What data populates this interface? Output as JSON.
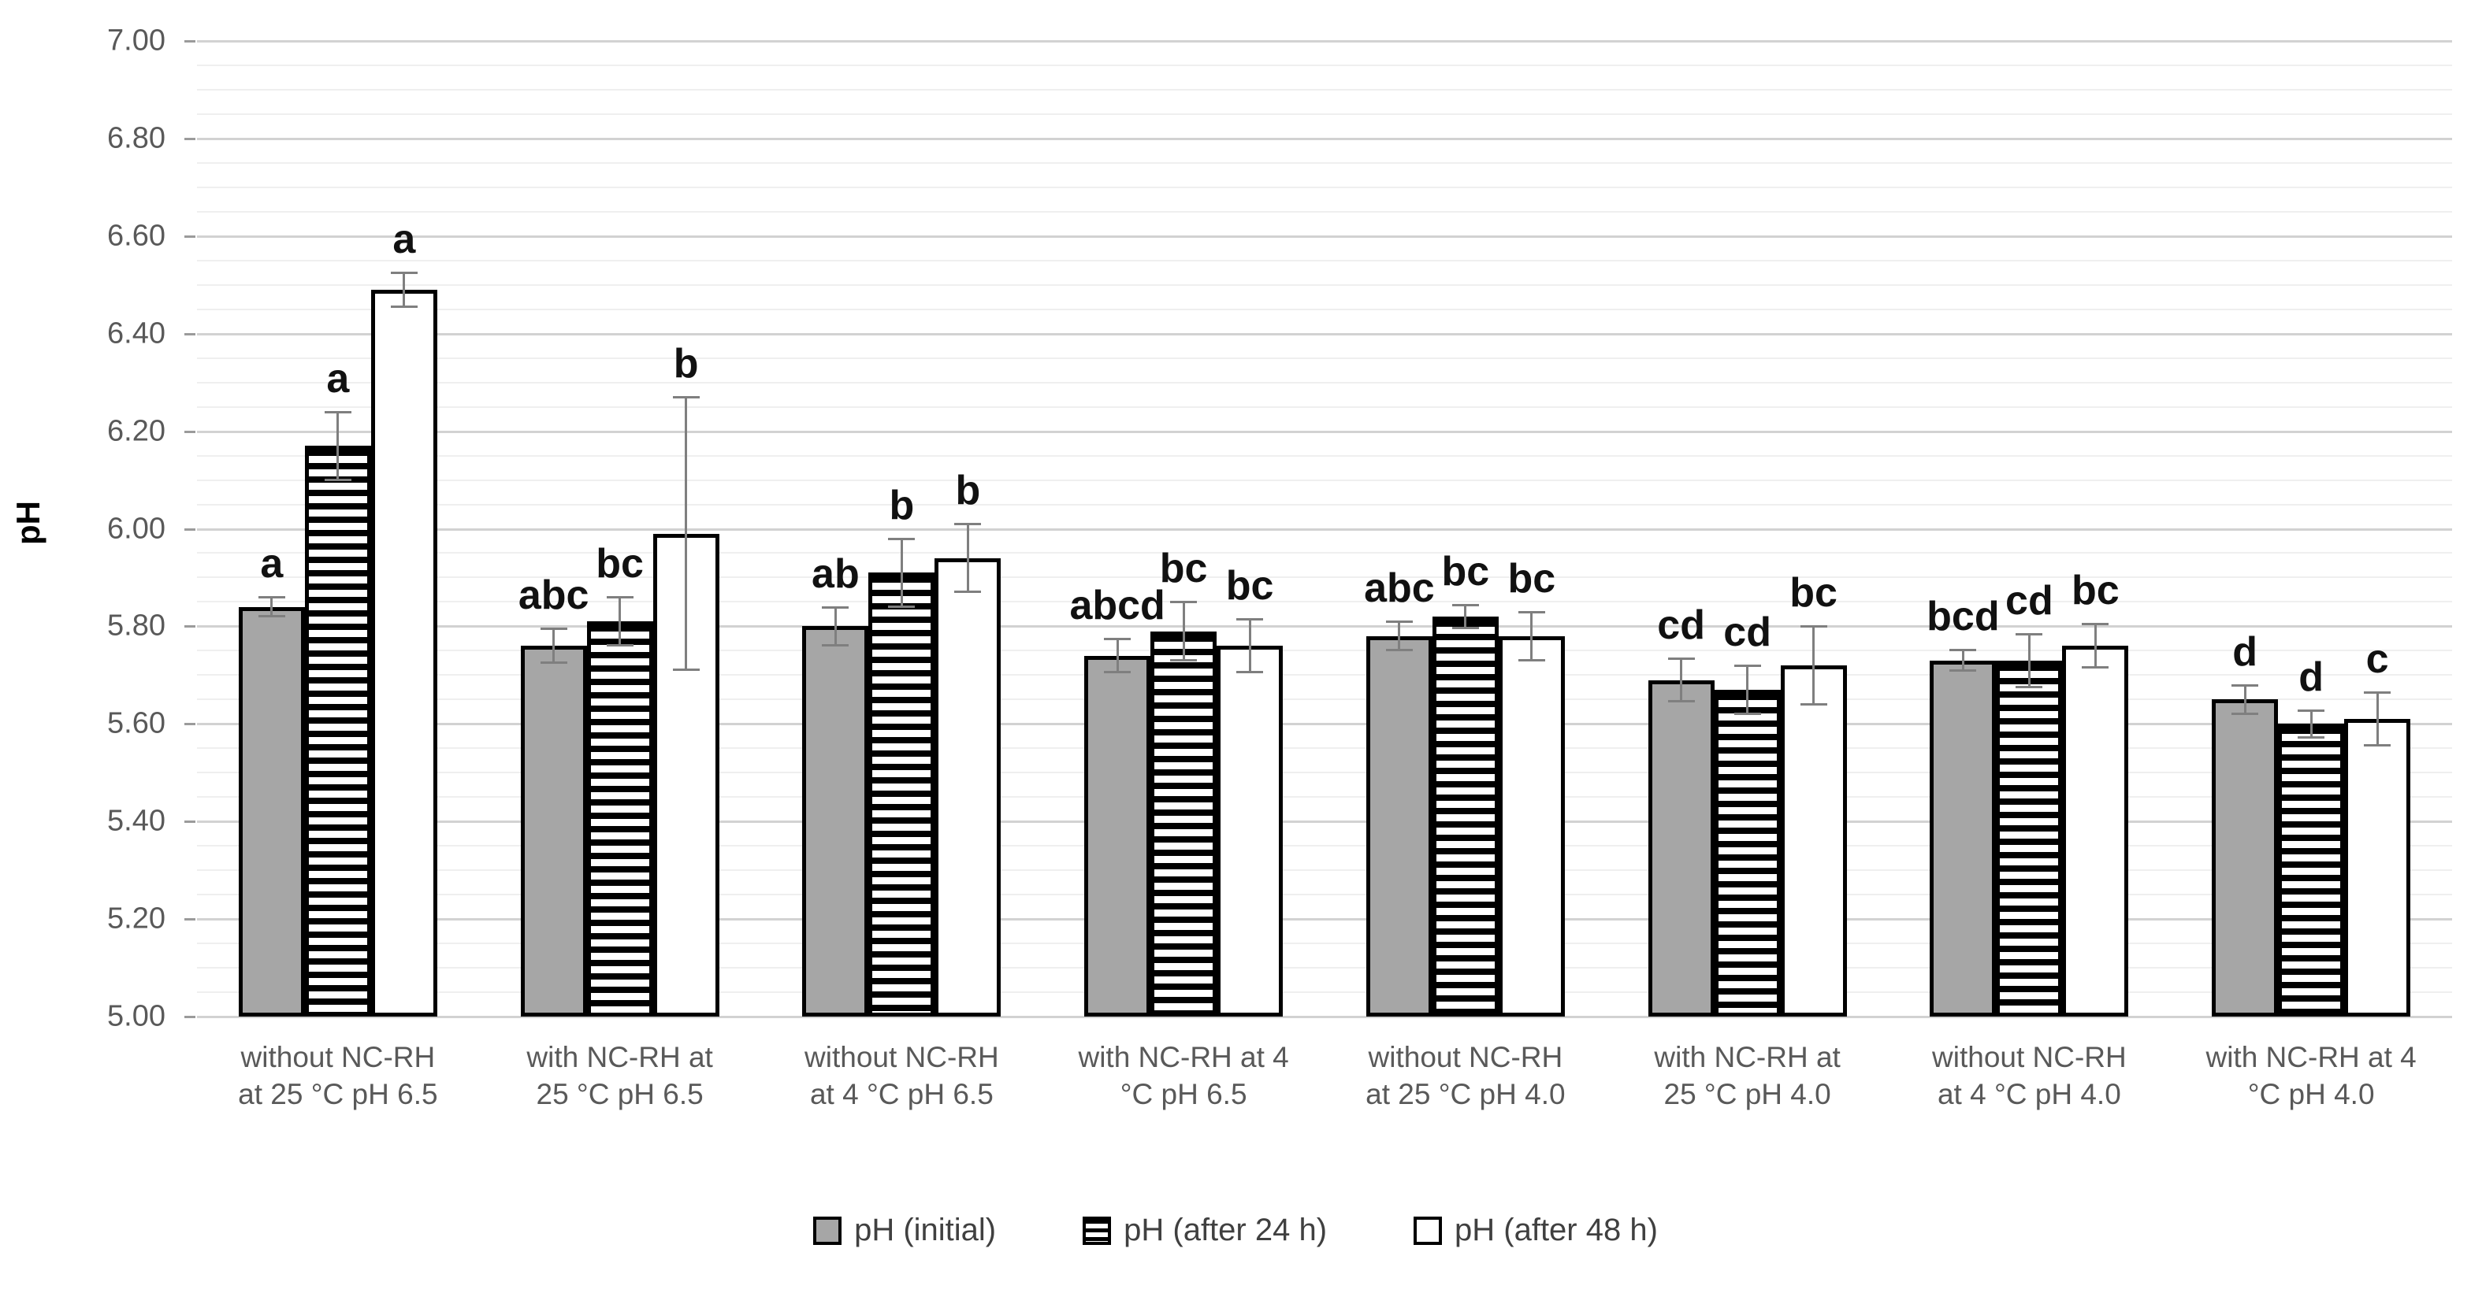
{
  "chart_data": {
    "type": "bar",
    "title": "",
    "xlabel": "",
    "ylabel": "pH",
    "ylim": [
      5.0,
      7.0
    ],
    "ytick_step": 0.2,
    "minor_gridline_step": 0.05,
    "grid": "on",
    "legend_position": "bottom",
    "yticks": [
      "7.00",
      "6.80",
      "6.60",
      "6.40",
      "6.20",
      "6.00",
      "5.80",
      "5.60",
      "5.40",
      "5.20",
      "5.00"
    ],
    "categories": [
      "without NC-RH at 25 °C pH 6.5",
      "with NC-RH at 25 °C pH 6.5",
      "without NC-RH at 4 °C pH 6.5",
      "with NC-RH at 4 °C pH 6.5",
      "without NC-RH at 25 °C pH 4.0",
      "with NC-RH at 25 °C pH 4.0",
      "without NC-RH at 4 °C pH 4.0",
      "with NC-RH at 4 °C pH 4.0"
    ],
    "category_label_lines": [
      [
        "without NC-RH",
        "at 25 °C pH 6.5"
      ],
      [
        "with NC-RH at",
        "25 °C pH 6.5"
      ],
      [
        "without NC-RH",
        "at 4 °C pH 6.5"
      ],
      [
        "with NC-RH at 4",
        "°C pH 6.5"
      ],
      [
        "without NC-RH",
        "at 25 °C pH 4.0"
      ],
      [
        "with NC-RH at",
        "25 °C pH 4.0"
      ],
      [
        "without NC-RH",
        "at 4 °C pH 4.0"
      ],
      [
        "with NC-RH at 4",
        "°C pH 4.0"
      ]
    ],
    "series": [
      {
        "name": "pH (initial)",
        "pattern": "solid-gray",
        "fill_color": "#a6a6a6",
        "values": [
          5.84,
          5.76,
          5.8,
          5.74,
          5.78,
          5.69,
          5.73,
          5.65
        ],
        "errors": [
          0.02,
          0.035,
          0.04,
          0.035,
          0.03,
          0.045,
          0.022,
          0.03
        ],
        "letters": [
          "a",
          "abc",
          "ab",
          "abcd",
          "abc",
          "cd",
          "bcd",
          "d"
        ]
      },
      {
        "name": "pH (after 24 h)",
        "pattern": "horizontal-stripes",
        "fill_color": "#ffffff",
        "values": [
          6.17,
          5.81,
          5.91,
          5.79,
          5.82,
          5.67,
          5.73,
          5.6
        ],
        "errors": [
          0.07,
          0.05,
          0.07,
          0.06,
          0.025,
          0.05,
          0.055,
          0.028
        ],
        "letters": [
          "a",
          "bc",
          "b",
          "bc",
          "bc",
          "cd",
          "cd",
          "d"
        ]
      },
      {
        "name": "pH (after 48 h)",
        "pattern": "solid-white",
        "fill_color": "#ffffff",
        "values": [
          6.49,
          5.99,
          5.94,
          5.76,
          5.78,
          5.72,
          5.76,
          5.61
        ],
        "errors": [
          0.035,
          0.28,
          0.07,
          0.055,
          0.05,
          0.08,
          0.045,
          0.055
        ],
        "letters": [
          "a",
          "b",
          "b",
          "bc",
          "bc",
          "bc",
          "bc",
          "c"
        ]
      }
    ],
    "colors": {
      "bar_border": "#000000",
      "error_bar": "#7f7f7f",
      "major_gridline": "#d2d2d2",
      "minor_gridline": "#efefef",
      "tick_text": "#595959",
      "letter_text": "#111111",
      "legend_text": "#404040"
    }
  }
}
